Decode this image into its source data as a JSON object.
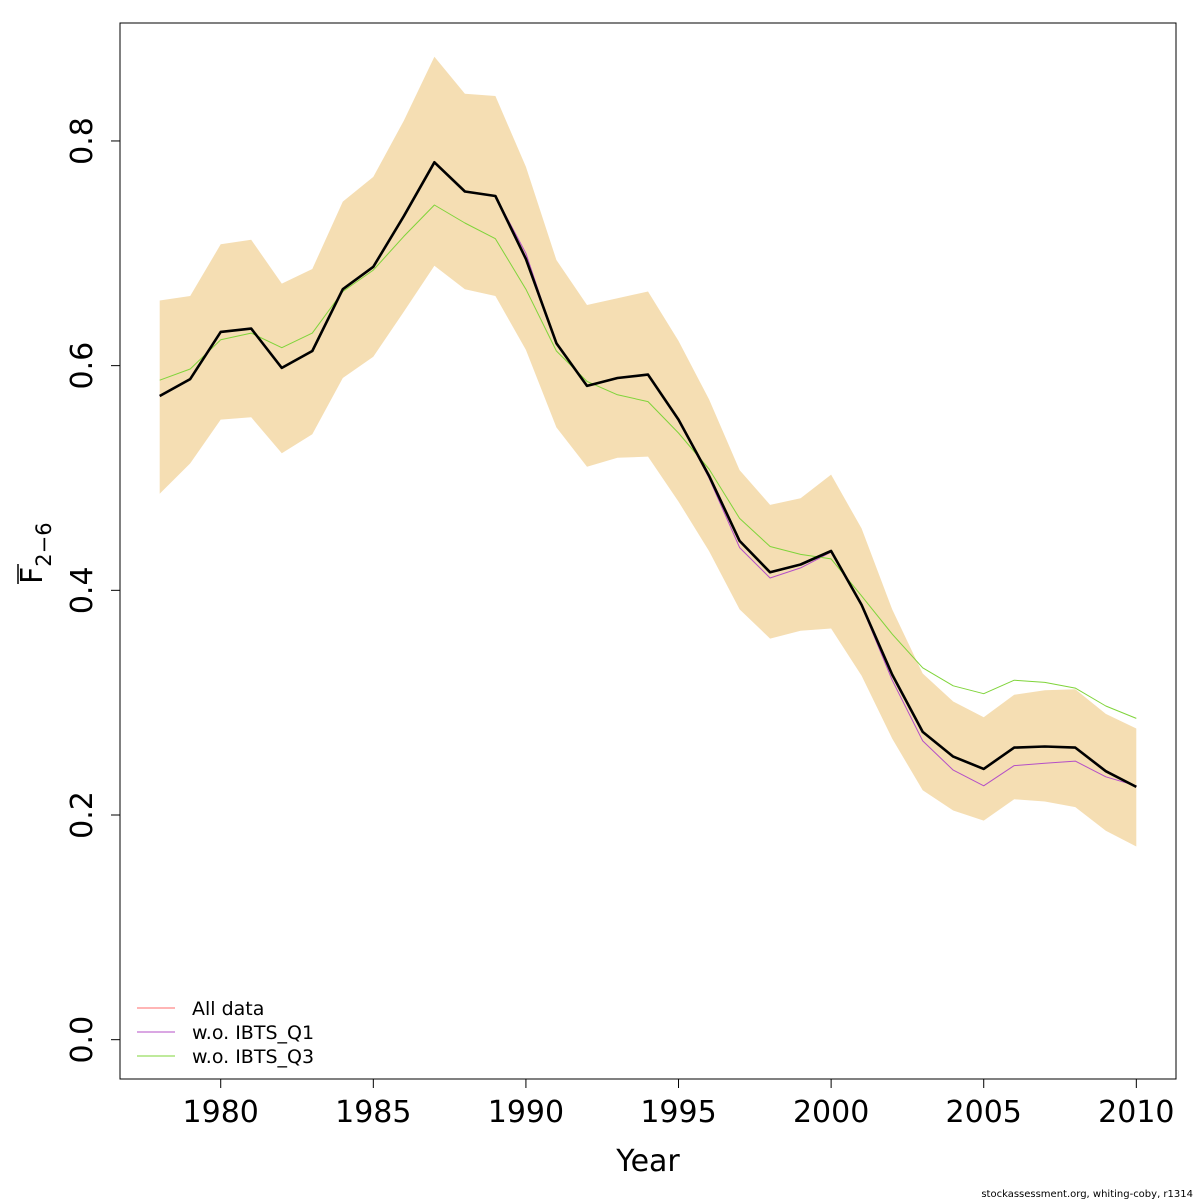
{
  "chart_data": {
    "type": "line",
    "xlabel": "Year",
    "ylabel": {
      "main": "F",
      "sub": "2−6"
    },
    "xlim": [
      1976.7,
      2011.3
    ],
    "ylim": [
      -0.035,
      0.905
    ],
    "x_ticks": [
      1980,
      1985,
      1990,
      1995,
      2000,
      2005,
      2010
    ],
    "x_tick_labels": [
      "1980",
      "1985",
      "1990",
      "1995",
      "2000",
      "2005",
      "2010"
    ],
    "y_ticks": [
      0.0,
      0.2,
      0.4,
      0.6,
      0.8
    ],
    "y_tick_labels": [
      "0.0",
      "0.2",
      "0.4",
      "0.6",
      "0.8"
    ],
    "grid": false,
    "legend_position": "bottom-left",
    "x": [
      1978,
      1979,
      1980,
      1981,
      1982,
      1983,
      1984,
      1985,
      1986,
      1987,
      1988,
      1989,
      1990,
      1991,
      1992,
      1993,
      1994,
      1995,
      1996,
      1997,
      1998,
      1999,
      2000,
      2001,
      2002,
      2003,
      2004,
      2005,
      2006,
      2007,
      2008,
      2009,
      2010
    ],
    "band": {
      "color": "#f5deb3",
      "lower": [
        0.486,
        0.513,
        0.552,
        0.554,
        0.522,
        0.539,
        0.589,
        0.608,
        0.648,
        0.689,
        0.668,
        0.662,
        0.614,
        0.545,
        0.51,
        0.518,
        0.519,
        0.479,
        0.435,
        0.383,
        0.357,
        0.364,
        0.366,
        0.324,
        0.268,
        0.222,
        0.204,
        0.195,
        0.214,
        0.212,
        0.207,
        0.186,
        0.172
      ],
      "upper": [
        0.658,
        0.662,
        0.708,
        0.712,
        0.673,
        0.686,
        0.746,
        0.768,
        0.818,
        0.875,
        0.842,
        0.84,
        0.777,
        0.694,
        0.654,
        0.66,
        0.666,
        0.622,
        0.57,
        0.507,
        0.476,
        0.482,
        0.503,
        0.455,
        0.383,
        0.326,
        0.301,
        0.287,
        0.307,
        0.311,
        0.312,
        0.29,
        0.277
      ]
    },
    "series": [
      {
        "name": "All data",
        "color": "#ff6b6b",
        "width": 1,
        "values": [
          0.573,
          0.588,
          0.63,
          0.633,
          0.598,
          0.613,
          0.668,
          0.688,
          0.733,
          0.781,
          0.755,
          0.751,
          0.695,
          0.62,
          0.582,
          0.589,
          0.592,
          0.552,
          0.502,
          0.444,
          0.416,
          0.423,
          0.435,
          0.387,
          0.325,
          0.274,
          0.252,
          0.241,
          0.26,
          0.261,
          0.26,
          0.239,
          0.225
        ]
      },
      {
        "name": "w.o. IBTS_Q1",
        "color": "#b44fc7",
        "width": 1,
        "values": [
          0.573,
          0.588,
          0.63,
          0.633,
          0.598,
          0.613,
          0.668,
          0.688,
          0.733,
          0.781,
          0.755,
          0.751,
          0.7,
          0.619,
          0.582,
          0.589,
          0.592,
          0.552,
          0.5,
          0.438,
          0.411,
          0.42,
          0.434,
          0.386,
          0.32,
          0.266,
          0.24,
          0.226,
          0.244,
          0.246,
          0.248,
          0.234,
          0.226
        ]
      },
      {
        "name": "w.o. IBTS_Q3",
        "color": "#7fd43a",
        "width": 1,
        "values": [
          0.587,
          0.597,
          0.623,
          0.629,
          0.616,
          0.629,
          0.666,
          0.685,
          0.715,
          0.743,
          0.727,
          0.713,
          0.668,
          0.613,
          0.586,
          0.574,
          0.568,
          0.54,
          0.508,
          0.464,
          0.439,
          0.432,
          0.428,
          0.395,
          0.361,
          0.331,
          0.315,
          0.308,
          0.32,
          0.318,
          0.313,
          0.297,
          0.286
        ]
      },
      {
        "name": "",
        "color": "#000000",
        "width": 2.6,
        "values": [
          0.573,
          0.588,
          0.63,
          0.633,
          0.598,
          0.613,
          0.668,
          0.688,
          0.733,
          0.781,
          0.755,
          0.751,
          0.695,
          0.62,
          0.582,
          0.589,
          0.592,
          0.552,
          0.502,
          0.444,
          0.416,
          0.423,
          0.435,
          0.387,
          0.325,
          0.274,
          0.252,
          0.241,
          0.26,
          0.261,
          0.26,
          0.239,
          0.225
        ]
      }
    ]
  },
  "legend": {
    "items": [
      {
        "label": "All data",
        "color": "#ff6b6b"
      },
      {
        "label": "w.o. IBTS_Q1",
        "color": "#b44fc7"
      },
      {
        "label": "w.o. IBTS_Q3",
        "color": "#7fd43a"
      }
    ]
  },
  "footer": "stockassessment.org, whiting-coby, r1314"
}
